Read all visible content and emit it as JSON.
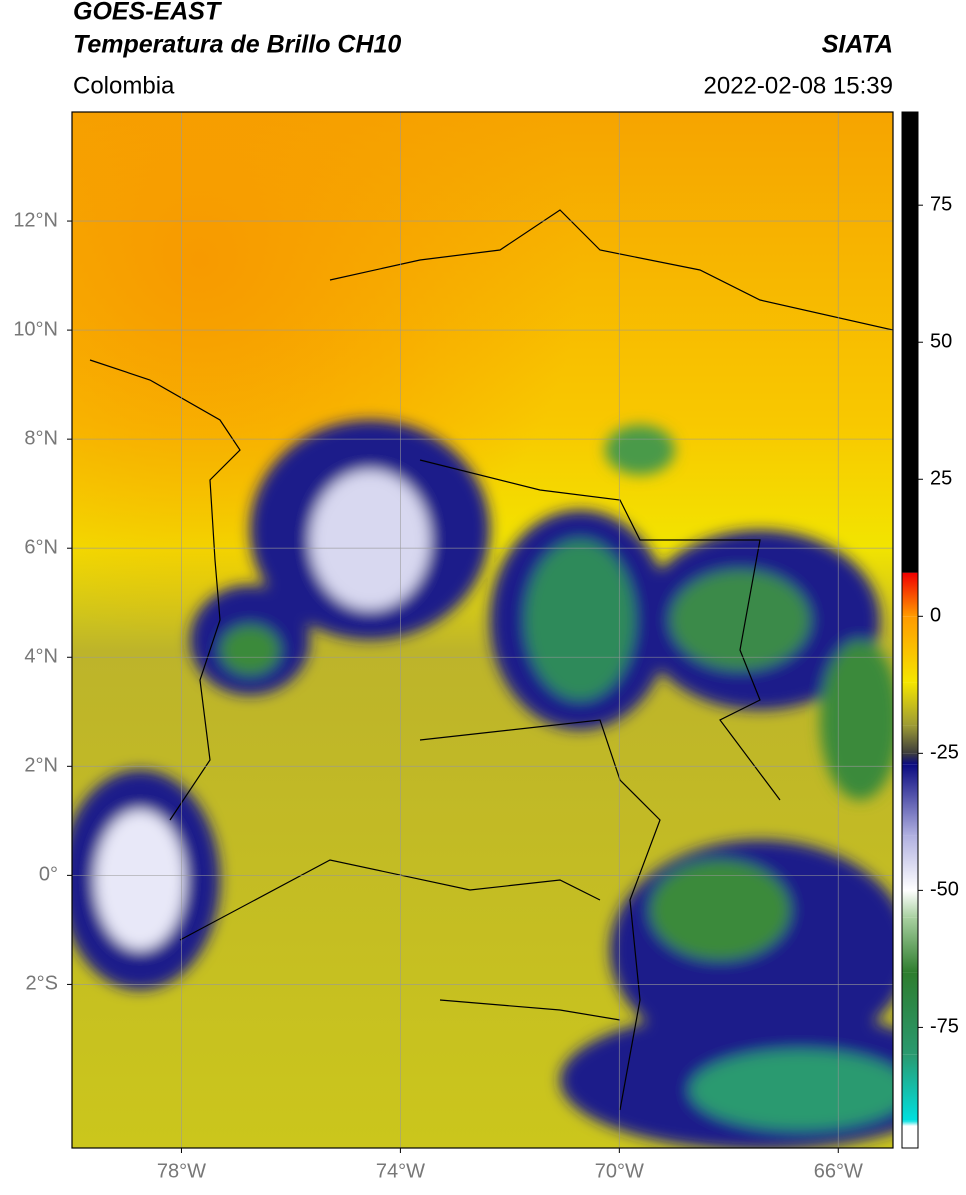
{
  "header": {
    "title_line1": "GOES-EAST",
    "title_line2": "Temperatura de Brillo CH10",
    "region": "Colombia",
    "source": "SIATA",
    "datetime": "2022-02-08 15:39"
  },
  "map": {
    "xlim": [
      -80,
      -65
    ],
    "ylim": [
      -5,
      14
    ],
    "grid": true,
    "xticks": [
      {
        "value": -78,
        "label": "78°W"
      },
      {
        "value": -74,
        "label": "74°W"
      },
      {
        "value": -70,
        "label": "70°W"
      },
      {
        "value": -66,
        "label": "66°W"
      }
    ],
    "yticks": [
      {
        "value": 12,
        "label": "12°N"
      },
      {
        "value": 10,
        "label": "10°N"
      },
      {
        "value": 8,
        "label": "8°N"
      },
      {
        "value": 6,
        "label": "6°N"
      },
      {
        "value": 4,
        "label": "4°N"
      },
      {
        "value": 2,
        "label": "2°N"
      },
      {
        "value": 0,
        "label": "0°"
      },
      {
        "value": -2,
        "label": "2°S"
      }
    ]
  },
  "colorbar": {
    "lim": [
      -97,
      92
    ],
    "ticks": [
      75,
      50,
      25,
      0,
      -25,
      -50,
      -75
    ],
    "stops": [
      {
        "value": 92,
        "color": "#000000"
      },
      {
        "value": 8,
        "color": "#000000"
      },
      {
        "value": 7.9,
        "color": "#f00000"
      },
      {
        "value": 0,
        "color": "#ff9a00"
      },
      {
        "value": -12,
        "color": "#f5e600"
      },
      {
        "value": -20,
        "color": "#9c9a35"
      },
      {
        "value": -25,
        "color": "#3c3c3c"
      },
      {
        "value": -27,
        "color": "#0a0a80"
      },
      {
        "value": -40,
        "color": "#b0b0e0"
      },
      {
        "value": -50,
        "color": "#ffffff"
      },
      {
        "value": -55,
        "color": "#a8d0a0"
      },
      {
        "value": -65,
        "color": "#2e7d2e"
      },
      {
        "value": -80,
        "color": "#2a9a70"
      },
      {
        "value": -92,
        "color": "#00e0e0"
      },
      {
        "value": -93,
        "color": "#ffffff"
      },
      {
        "value": -97,
        "color": "#ffffff"
      }
    ]
  }
}
